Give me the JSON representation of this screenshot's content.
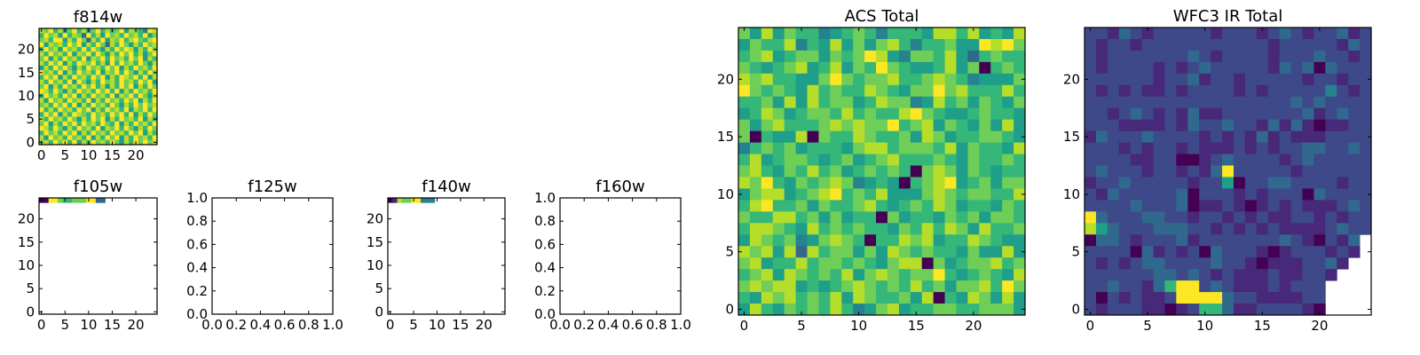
{
  "colormap": [
    "#440154",
    "#482878",
    "#3e4989",
    "#31688e",
    "#26828e",
    "#1f9e89",
    "#35b779",
    "#6ece58",
    "#b5de2b",
    "#fde725"
  ],
  "chart_data": [
    {
      "type": "heatmap",
      "title": "f814w",
      "xlim": [
        -0.5,
        24.5
      ],
      "ylim": [
        -0.5,
        24.5
      ],
      "xticks": [
        0,
        5,
        10,
        15,
        20
      ],
      "yticks": [
        0,
        5,
        10,
        15,
        20
      ],
      "grid_note": "rows listed top (y=24) to bottom (y=0); digits are colormap levels 0-9, '.' = no data",
      "grid": [
        "8796857968579686795876498",
        "6978596873968597869786957",
        "7869958697386958796897689",
        "9587869795869738697586978",
        "6978597869697586979858697",
        "8697869587969758697968579",
        "7958697869587969786979586",
        "8697958698796859697869758",
        "5869797586978697958697869",
        "9786958697869587969758697",
        "6979586978697958698796958",
        "8697869597586978697869795",
        "7958697869796858697958697",
        "9869758697869796958697869",
        "6978697958697869587969758",
        "8597869786958697869795869",
        "7869796958697869758697978",
        "9686978697958697869587969",
        "6979586987697869796958697",
        "8697869758697958697869586",
        "7958697969786976958697869",
        "9869758697869587969758697",
        "6978697958697869786979586",
        "8597869786958697958697869",
        "7869796958697869758697978"
      ]
    },
    {
      "type": "heatmap",
      "title": "f105w",
      "xlim": [
        -0.5,
        24.5
      ],
      "ylim": [
        -0.5,
        24.5
      ],
      "xticks": [
        0,
        5,
        10,
        15,
        20
      ],
      "yticks": [
        0,
        5,
        10,
        15,
        20
      ],
      "grid": [
        "00997667779933..........."
      ]
    },
    {
      "type": "empty",
      "title": "f125w",
      "xlim": [
        0,
        1
      ],
      "ylim": [
        0,
        1
      ],
      "xticks": [
        0.0,
        0.2,
        0.4,
        0.6,
        0.8,
        1.0
      ],
      "yticks": [
        0.0,
        0.2,
        0.4,
        0.6,
        0.8,
        1.0
      ],
      "grid": []
    },
    {
      "type": "heatmap",
      "title": "f140w",
      "xlim": [
        -0.5,
        24.5
      ],
      "ylim": [
        -0.5,
        24.5
      ],
      "xticks": [
        0,
        5,
        10,
        15,
        20
      ],
      "yticks": [
        0,
        5,
        10,
        15,
        20
      ],
      "grid": [
        "0187799444..............."
      ]
    },
    {
      "type": "empty",
      "title": "f160w",
      "xlim": [
        0,
        1
      ],
      "ylim": [
        0,
        1
      ],
      "xticks": [
        0.0,
        0.2,
        0.4,
        0.6,
        0.8,
        1.0
      ],
      "yticks": [
        0.0,
        0.2,
        0.4,
        0.6,
        0.8,
        1.0
      ],
      "grid": []
    },
    {
      "type": "heatmap",
      "title": "ACS Total",
      "xlim": [
        -0.5,
        24.5
      ],
      "ylim": [
        -0.5,
        24.5
      ],
      "xticks": [
        0,
        5,
        10,
        15,
        20
      ],
      "yticks": [
        0,
        5,
        10,
        15,
        20
      ],
      "grid": [
        "7585766456764666588685658",
        "5766846585757864667559897",
        "6785677576798547768536766",
        "7656785685769765568570676",
        "8786655797677866787645557",
        "9767658676687657797866686",
        "6675858677568774586757657",
        "5687567768676689765567665",
        "7578666787877967857657585",
        "7065580766876675875667765",
        "4676756665788677768576658",
        "6856776567567866676576676",
        "7865768675676760787576566",
        "8796576787456506789567577",
        "5788567896768555787677668",
        "6896675766786567687566576",
        "7668867575660756657675776",
        "6887658676766576868758667",
        "5876745787606687856687655",
        "8785838677575876766575585",
        "7856686776765788075677867",
        "6785876768578767796567658",
        "7878856567876768675778697",
        "6587867685876675806587585",
        "5865767686457856677667775"
      ]
    },
    {
      "type": "heatmap",
      "title": "WFC3 IR Total",
      "xlim": [
        -0.5,
        24.5
      ],
      "ylim": [
        -0.5,
        24.5
      ],
      "xticks": [
        0,
        5,
        10,
        15,
        20
      ],
      "yticks": [
        0,
        5,
        10,
        15,
        20
      ],
      "grid": [
        "2213212222212221232122312",
        "2122122222222222122222132",
        "2122222223212222122232212",
        "2122221212322222132303222",
        "2222221223122122222122122",
        "2121211212222121222224212",
        "2222222222222222223232222",
        "2212321213112222222312322",
        "2221111213223221313101122",
        "1322232222121213121112222",
        "2221212212111212122332232",
        "2222112200123222212322222",
        "2322212212139222221222222",
        "1223222221225022332222122",
        "2132222230222121222032222",
        "2222322230112101212111232",
        "9322233221221212112212122",
        "8532223332212121211112322",
        "033212223122222223210213.",
        "222203121203222101222121.",
        "21212332222322101112231..",
        "2222223323212111211221...",
        "223221369923211121222....",
        "202121129999322111122....",
        "212221101266311222210...."
      ]
    }
  ]
}
